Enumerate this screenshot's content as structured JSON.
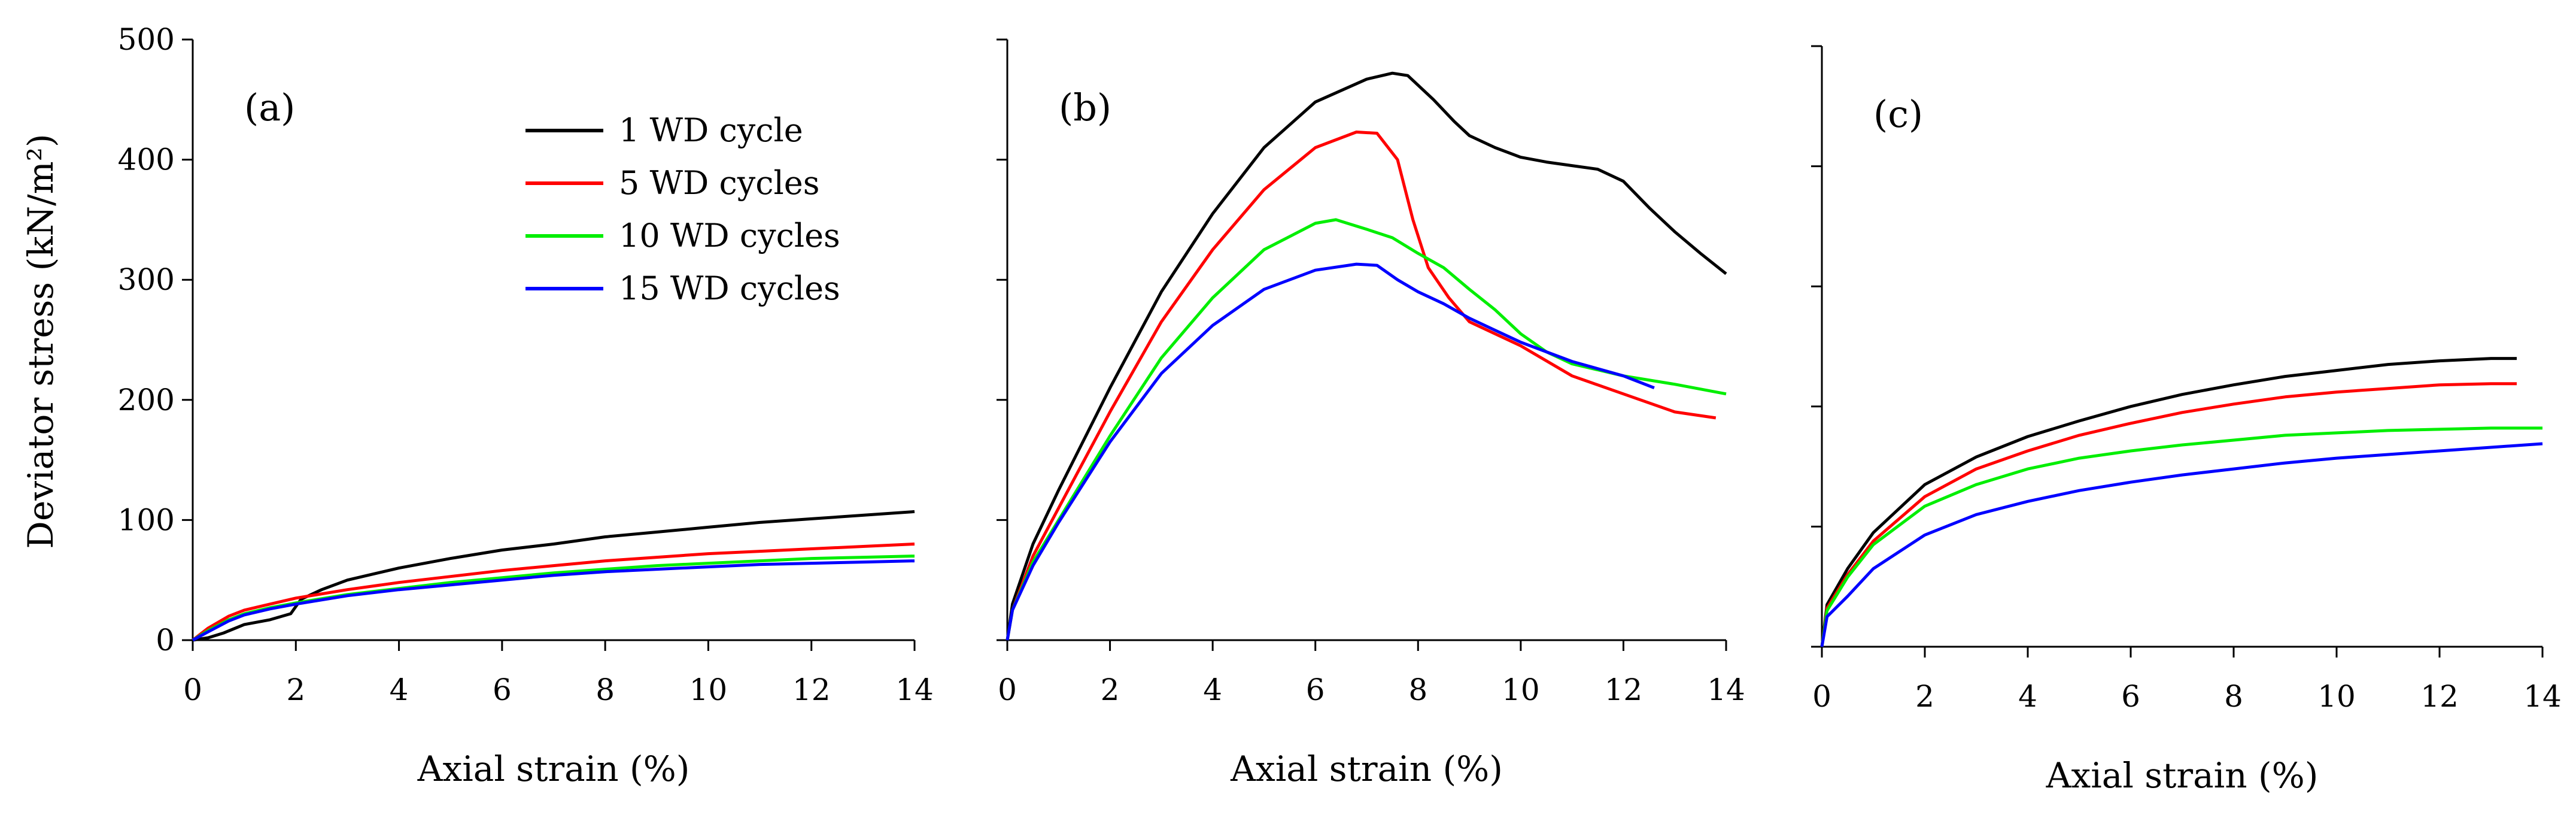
{
  "figure": {
    "y_axis_title": "Deviator stress (kN/m²)",
    "legend": [
      {
        "label": "1 WD cycle",
        "color": "#000000"
      },
      {
        "label": "5 WD cycles",
        "color": "#ff0000"
      },
      {
        "label": "10 WD cycles",
        "color": "#00ee00"
      },
      {
        "label": "15 WD cycles",
        "color": "#0000ff"
      }
    ]
  },
  "chart_data": [
    {
      "type": "line",
      "panel_label": "(a)",
      "xlabel": "Axial strain (%)",
      "ylabel": "Deviator stress (kN/m²)",
      "xlim": [
        0,
        14
      ],
      "ylim": [
        0,
        500
      ],
      "xticks": [
        0,
        2,
        4,
        6,
        8,
        10,
        12,
        14
      ],
      "yticks": [
        0,
        100,
        200,
        300,
        400,
        500
      ],
      "series": [
        {
          "name": "1 WD cycle",
          "color": "#000000",
          "points": [
            [
              0,
              0
            ],
            [
              0.3,
              2
            ],
            [
              0.6,
              6
            ],
            [
              1,
              13
            ],
            [
              1.5,
              17
            ],
            [
              1.9,
              22
            ],
            [
              2.1,
              34
            ],
            [
              2.5,
              42
            ],
            [
              3,
              50
            ],
            [
              4,
              60
            ],
            [
              5,
              68
            ],
            [
              6,
              75
            ],
            [
              7,
              80
            ],
            [
              8,
              86
            ],
            [
              9,
              90
            ],
            [
              10,
              94
            ],
            [
              11,
              98
            ],
            [
              12,
              101
            ],
            [
              13,
              104
            ],
            [
              14,
              107
            ]
          ]
        },
        {
          "name": "5 WD cycles",
          "color": "#ff0000",
          "points": [
            [
              0,
              0
            ],
            [
              0.3,
              10
            ],
            [
              0.7,
              20
            ],
            [
              1,
              25
            ],
            [
              1.5,
              30
            ],
            [
              2,
              35
            ],
            [
              3,
              42
            ],
            [
              4,
              48
            ],
            [
              5,
              53
            ],
            [
              6,
              58
            ],
            [
              7,
              62
            ],
            [
              8,
              66
            ],
            [
              9,
              69
            ],
            [
              10,
              72
            ],
            [
              11,
              74
            ],
            [
              12,
              76
            ],
            [
              13,
              78
            ],
            [
              14,
              80
            ]
          ]
        },
        {
          "name": "10 WD cycles",
          "color": "#00ee00",
          "points": [
            [
              0,
              0
            ],
            [
              0.3,
              8
            ],
            [
              0.7,
              17
            ],
            [
              1,
              22
            ],
            [
              1.5,
              27
            ],
            [
              2,
              31
            ],
            [
              3,
              38
            ],
            [
              4,
              43
            ],
            [
              5,
              48
            ],
            [
              6,
              52
            ],
            [
              7,
              56
            ],
            [
              8,
              59
            ],
            [
              9,
              62
            ],
            [
              10,
              64
            ],
            [
              11,
              66
            ],
            [
              12,
              68
            ],
            [
              13,
              69
            ],
            [
              14,
              70
            ]
          ]
        },
        {
          "name": "15 WD cycles",
          "color": "#0000ff",
          "points": [
            [
              0,
              0
            ],
            [
              0.3,
              7
            ],
            [
              0.7,
              16
            ],
            [
              1,
              21
            ],
            [
              1.5,
              26
            ],
            [
              2,
              30
            ],
            [
              3,
              37
            ],
            [
              4,
              42
            ],
            [
              5,
              46
            ],
            [
              6,
              50
            ],
            [
              7,
              54
            ],
            [
              8,
              57
            ],
            [
              9,
              59
            ],
            [
              10,
              61
            ],
            [
              11,
              63
            ],
            [
              12,
              64
            ],
            [
              13,
              65
            ],
            [
              14,
              66
            ]
          ]
        }
      ]
    },
    {
      "type": "line",
      "panel_label": "(b)",
      "xlabel": "Axial strain (%)",
      "ylabel": "",
      "xlim": [
        0,
        14
      ],
      "ylim": [
        0,
        500
      ],
      "xticks": [
        0,
        2,
        4,
        6,
        8,
        10,
        12,
        14
      ],
      "yticks": [
        0,
        100,
        200,
        300,
        400,
        500
      ],
      "series": [
        {
          "name": "1 WD cycle",
          "color": "#000000",
          "points": [
            [
              0,
              0
            ],
            [
              0.1,
              30
            ],
            [
              0.5,
              80
            ],
            [
              1,
              125
            ],
            [
              2,
              210
            ],
            [
              3,
              290
            ],
            [
              4,
              355
            ],
            [
              5,
              410
            ],
            [
              6,
              448
            ],
            [
              7,
              467
            ],
            [
              7.5,
              472
            ],
            [
              7.8,
              470
            ],
            [
              8.3,
              450
            ],
            [
              8.7,
              432
            ],
            [
              9,
              420
            ],
            [
              9.5,
              410
            ],
            [
              10,
              402
            ],
            [
              10.5,
              398
            ],
            [
              11,
              395
            ],
            [
              11.5,
              392
            ],
            [
              12,
              382
            ],
            [
              12.5,
              360
            ],
            [
              13,
              340
            ],
            [
              13.5,
              322
            ],
            [
              14,
              305
            ]
          ]
        },
        {
          "name": "5 WD cycles",
          "color": "#ff0000",
          "points": [
            [
              0,
              0
            ],
            [
              0.1,
              25
            ],
            [
              0.5,
              70
            ],
            [
              1,
              110
            ],
            [
              2,
              190
            ],
            [
              3,
              265
            ],
            [
              4,
              325
            ],
            [
              5,
              375
            ],
            [
              6,
              410
            ],
            [
              6.8,
              423
            ],
            [
              7.2,
              422
            ],
            [
              7.6,
              400
            ],
            [
              7.9,
              350
            ],
            [
              8.2,
              310
            ],
            [
              8.6,
              285
            ],
            [
              9,
              265
            ],
            [
              10,
              245
            ],
            [
              11,
              220
            ],
            [
              12,
              205
            ],
            [
              13,
              190
            ],
            [
              13.8,
              185
            ]
          ]
        },
        {
          "name": "10 WD cycles",
          "color": "#00ee00",
          "points": [
            [
              0,
              0
            ],
            [
              0.1,
              25
            ],
            [
              0.5,
              65
            ],
            [
              1,
              100
            ],
            [
              2,
              170
            ],
            [
              3,
              235
            ],
            [
              4,
              285
            ],
            [
              5,
              325
            ],
            [
              6,
              347
            ],
            [
              6.4,
              350
            ],
            [
              7,
              342
            ],
            [
              7.5,
              335
            ],
            [
              8,
              322
            ],
            [
              8.5,
              310
            ],
            [
              9,
              292
            ],
            [
              9.5,
              275
            ],
            [
              10,
              255
            ],
            [
              10.5,
              240
            ],
            [
              11,
              230
            ],
            [
              11.5,
              225
            ],
            [
              12,
              220
            ],
            [
              13,
              213
            ],
            [
              14,
              205
            ]
          ]
        },
        {
          "name": "15 WD cycles",
          "color": "#0000ff",
          "points": [
            [
              0,
              0
            ],
            [
              0.1,
              25
            ],
            [
              0.5,
              62
            ],
            [
              1,
              98
            ],
            [
              2,
              165
            ],
            [
              3,
              222
            ],
            [
              4,
              262
            ],
            [
              5,
              292
            ],
            [
              6,
              308
            ],
            [
              6.8,
              313
            ],
            [
              7.2,
              312
            ],
            [
              7.6,
              300
            ],
            [
              8,
              290
            ],
            [
              8.5,
              280
            ],
            [
              9,
              268
            ],
            [
              9.5,
              258
            ],
            [
              10,
              248
            ],
            [
              11,
              232
            ],
            [
              12,
              220
            ],
            [
              12.6,
              210
            ]
          ]
        }
      ]
    },
    {
      "type": "line",
      "panel_label": "(c)",
      "xlabel": "Axial strain (%)",
      "ylabel": "",
      "xlim": [
        0,
        14
      ],
      "ylim": [
        0,
        500
      ],
      "xticks": [
        0,
        2,
        4,
        6,
        8,
        10,
        12,
        14
      ],
      "yticks": [
        0,
        100,
        200,
        300,
        400,
        500
      ],
      "series": [
        {
          "name": "1 WD cycle",
          "color": "#000000",
          "points": [
            [
              0,
              0
            ],
            [
              0.1,
              35
            ],
            [
              0.5,
              65
            ],
            [
              1,
              95
            ],
            [
              2,
              135
            ],
            [
              3,
              158
            ],
            [
              4,
              175
            ],
            [
              5,
              188
            ],
            [
              6,
              200
            ],
            [
              7,
              210
            ],
            [
              8,
              218
            ],
            [
              9,
              225
            ],
            [
              10,
              230
            ],
            [
              11,
              235
            ],
            [
              12,
              238
            ],
            [
              13,
              240
            ],
            [
              13.5,
              240
            ]
          ]
        },
        {
          "name": "5 WD cycles",
          "color": "#ff0000",
          "points": [
            [
              0,
              0
            ],
            [
              0.1,
              32
            ],
            [
              0.5,
              60
            ],
            [
              1,
              88
            ],
            [
              2,
              125
            ],
            [
              3,
              148
            ],
            [
              4,
              163
            ],
            [
              5,
              176
            ],
            [
              6,
              186
            ],
            [
              7,
              195
            ],
            [
              8,
              202
            ],
            [
              9,
              208
            ],
            [
              10,
              212
            ],
            [
              11,
              215
            ],
            [
              12,
              218
            ],
            [
              13,
              219
            ],
            [
              13.5,
              219
            ]
          ]
        },
        {
          "name": "10 WD cycles",
          "color": "#00ee00",
          "points": [
            [
              0,
              0
            ],
            [
              0.1,
              30
            ],
            [
              0.5,
              58
            ],
            [
              1,
              85
            ],
            [
              2,
              117
            ],
            [
              3,
              135
            ],
            [
              4,
              148
            ],
            [
              5,
              157
            ],
            [
              6,
              163
            ],
            [
              7,
              168
            ],
            [
              8,
              172
            ],
            [
              9,
              176
            ],
            [
              10,
              178
            ],
            [
              11,
              180
            ],
            [
              12,
              181
            ],
            [
              13,
              182
            ],
            [
              14,
              182
            ]
          ]
        },
        {
          "name": "15 WD cycles",
          "color": "#0000ff",
          "points": [
            [
              0,
              0
            ],
            [
              0.1,
              25
            ],
            [
              0.5,
              42
            ],
            [
              1,
              65
            ],
            [
              2,
              93
            ],
            [
              3,
              110
            ],
            [
              4,
              121
            ],
            [
              5,
              130
            ],
            [
              6,
              137
            ],
            [
              7,
              143
            ],
            [
              8,
              148
            ],
            [
              9,
              153
            ],
            [
              10,
              157
            ],
            [
              11,
              160
            ],
            [
              12,
              163
            ],
            [
              13,
              166
            ],
            [
              14,
              169
            ]
          ]
        }
      ]
    }
  ]
}
